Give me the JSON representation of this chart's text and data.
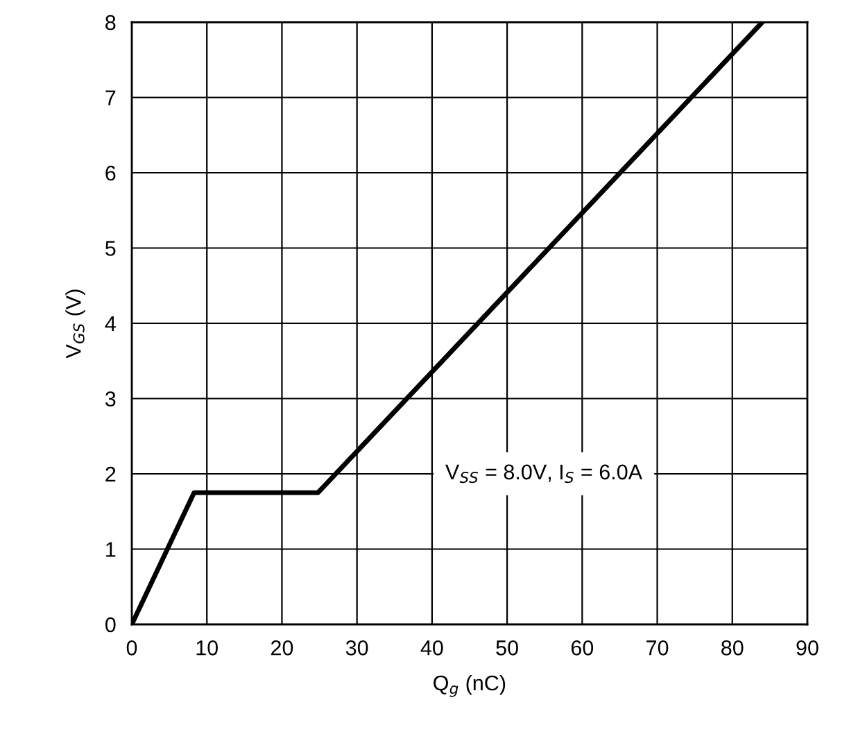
{
  "chart_data": {
    "type": "line",
    "xlabel": "Q$_{g}$ (nC)",
    "ylabel": "V$_{GS}$ (V)",
    "series": [
      {
        "color": "#000000",
        "x": [
          0,
          8.3,
          24.8,
          84
        ],
        "values": [
          0,
          1.75,
          1.75,
          8
        ]
      }
    ],
    "xlim": [
      0,
      90
    ],
    "xticks": [
      0,
      10,
      20,
      30,
      40,
      50,
      60,
      70,
      80,
      90
    ],
    "ylim": [
      0,
      8
    ],
    "yticks": [
      0,
      1,
      2,
      3,
      4,
      5,
      6,
      7,
      8
    ],
    "grid": true,
    "marker": "none",
    "line_style": "solid",
    "annotations": [
      "V$_{SS}$ = 8.0V, I$_{S}$ = 6.0A"
    ]
  }
}
